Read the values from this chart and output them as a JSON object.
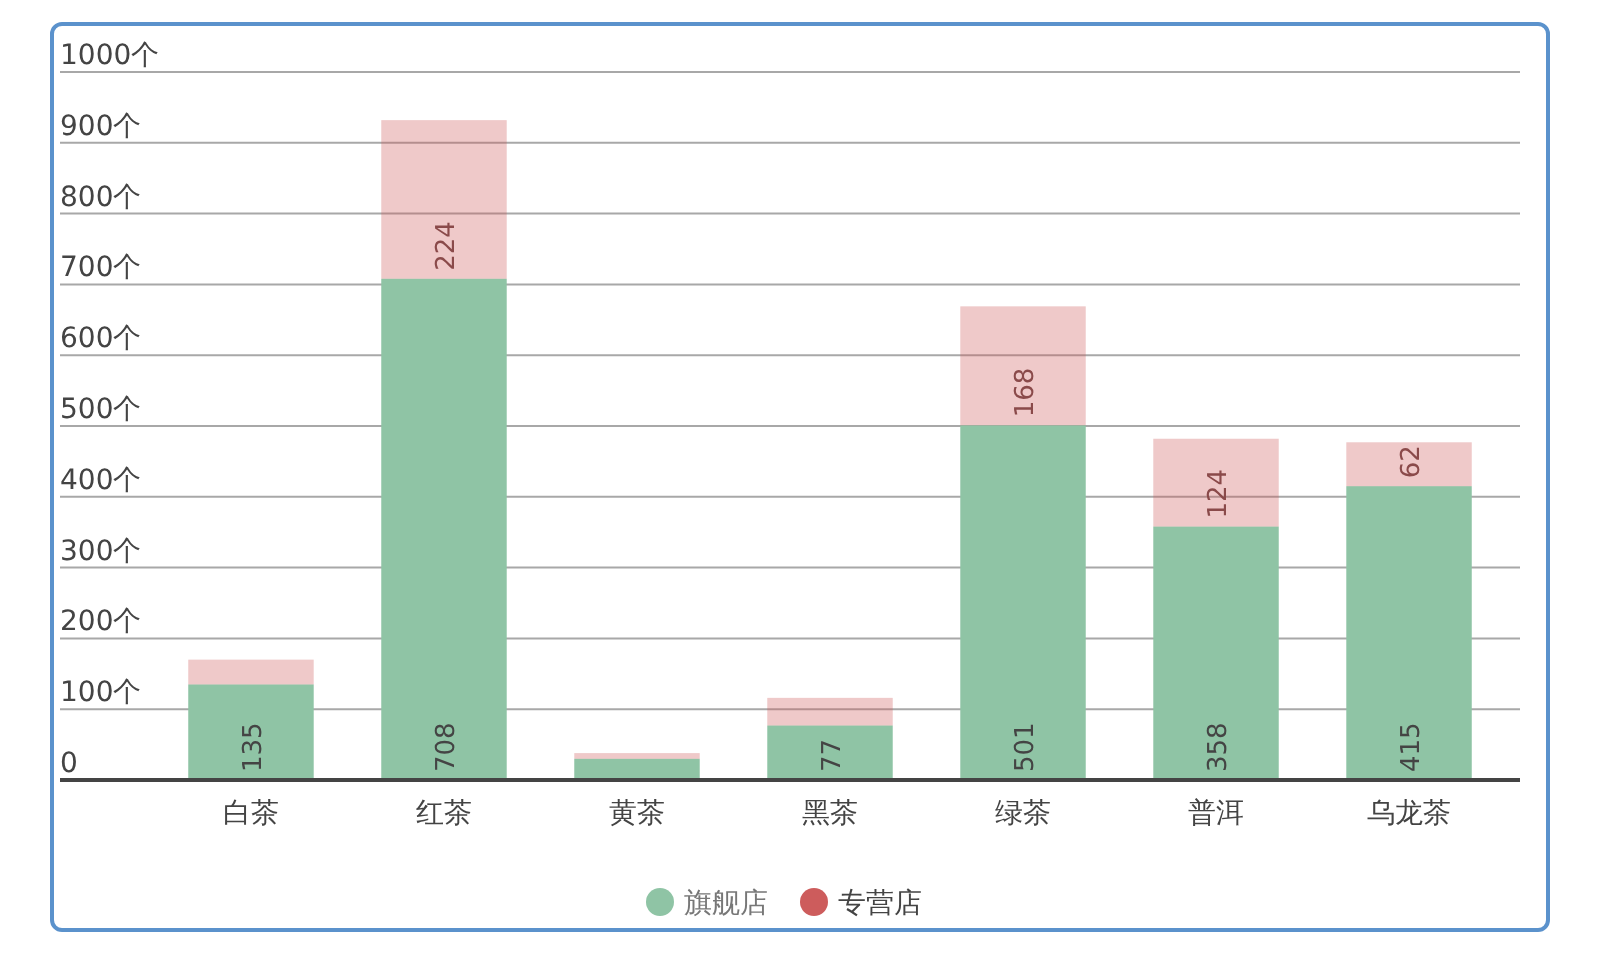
{
  "chart_data": {
    "type": "bar",
    "stacked": true,
    "categories": [
      "白茶",
      "红茶",
      "黄茶",
      "黑茶",
      "绿茶",
      "普洱",
      "乌龙茶"
    ],
    "series": [
      {
        "name": "旗舰店",
        "color": "#8fc4a5",
        "values": [
          135,
          708,
          30,
          77,
          501,
          358,
          415
        ],
        "value_labels": [
          "135",
          "708",
          null,
          "77",
          "501",
          "358",
          "415"
        ]
      },
      {
        "name": "专营店",
        "color": "#cd5c5c",
        "values": [
          35,
          224,
          8,
          39,
          168,
          124,
          62
        ],
        "value_labels": [
          null,
          "224",
          null,
          null,
          "168",
          "124",
          "62"
        ]
      }
    ],
    "ylim": [
      0,
      1000
    ],
    "yticks": [
      0,
      {
        "value": 100,
        "label": "100个"
      },
      {
        "value": 200,
        "label": "200个"
      },
      {
        "value": 300,
        "label": "300个"
      },
      {
        "value": 400,
        "label": "400个"
      },
      {
        "value": 500,
        "label": "500个"
      },
      {
        "value": 600,
        "label": "600个"
      },
      {
        "value": 700,
        "label": "700个"
      },
      {
        "value": 800,
        "label": "800个"
      },
      {
        "value": 900,
        "label": "900个"
      },
      {
        "value": 1000,
        "label": "1000个"
      }
    ],
    "grid": "y",
    "legend": "bottom"
  }
}
